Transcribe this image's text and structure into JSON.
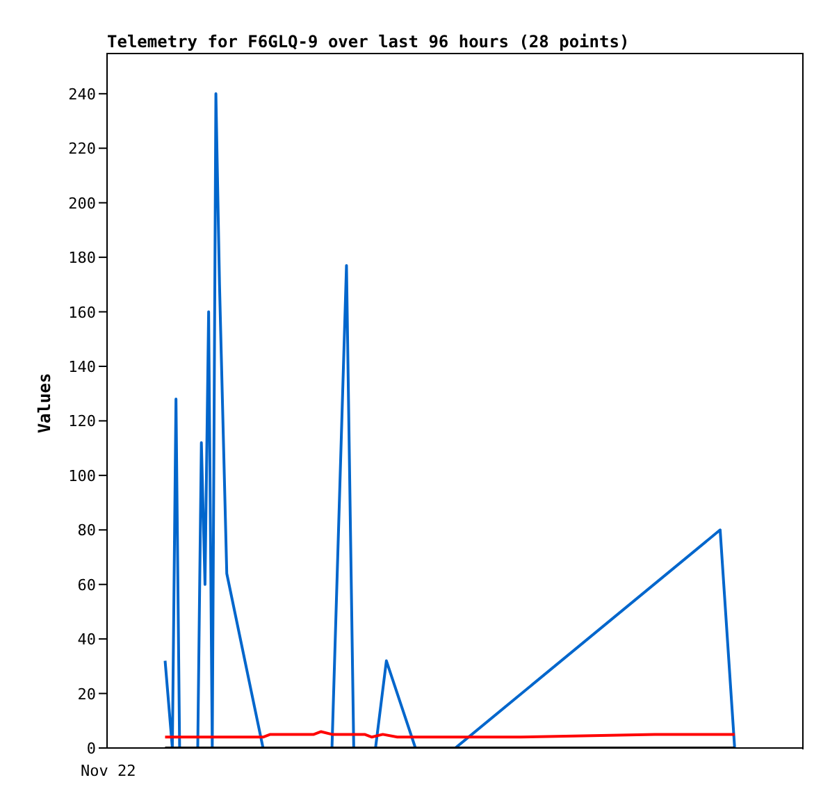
{
  "chart_data": {
    "type": "line",
    "title": "Telemetry for F6GLQ-9 over last 96 hours (28 points)",
    "ylabel": "Values",
    "annotations": [
      "Nov 22"
    ],
    "ylim": [
      0,
      255
    ],
    "yticks": [
      0,
      20,
      40,
      60,
      80,
      100,
      120,
      140,
      160,
      180,
      200,
      220,
      240
    ],
    "marker": "none",
    "line_style": "solid",
    "categories": [
      null,
      null,
      null,
      null,
      null,
      null,
      null,
      null,
      null,
      null,
      null,
      null,
      null,
      null,
      null,
      null,
      null,
      null,
      null,
      null,
      null,
      null,
      null,
      null,
      null,
      null,
      null,
      null,
      null,
      null,
      null,
      null,
      null,
      null,
      null,
      null,
      null,
      null,
      null,
      null,
      null,
      null,
      null,
      null,
      null,
      null,
      null,
      null,
      null,
      null,
      null,
      null,
      null,
      null,
      null,
      null,
      null,
      null,
      null,
      null,
      null,
      null,
      null,
      null,
      null,
      null,
      null,
      null,
      null,
      null,
      null,
      null,
      null,
      null,
      null,
      null,
      null,
      null,
      null,
      null,
      null,
      null,
      null,
      null,
      null,
      null,
      null,
      null,
      null,
      null,
      null,
      null,
      null,
      null,
      null,
      null,
      null,
      null,
      null,
      null,
      null,
      null,
      null,
      null,
      null,
      null,
      null,
      null,
      null,
      null,
      null,
      null,
      null,
      null,
      null,
      null,
      null,
      null,
      null,
      null,
      null,
      null,
      null,
      null,
      null,
      null,
      null,
      null,
      null,
      null,
      null,
      null,
      null,
      null,
      null,
      null,
      null,
      null,
      null,
      null,
      null,
      null,
      null,
      null,
      null,
      null,
      null,
      null,
      null,
      null,
      null,
      null,
      null,
      null,
      null,
      null,
      null,
      null,
      null,
      null,
      null,
      null,
      null,
      null,
      null,
      null,
      null,
      null,
      null,
      null,
      null,
      null,
      null,
      null,
      null,
      null,
      null,
      null,
      null,
      null,
      null,
      null,
      null,
      null,
      null,
      null,
      null,
      null,
      null,
      null,
      null,
      null,
      null
    ],
    "series": [
      {
        "color": "#0066cc",
        "values": [
          null,
          null,
          null,
          null,
          null,
          null,
          null,
          null,
          null,
          null,
          null,
          null,
          null,
          null,
          null,
          null,
          32,
          null,
          0,
          128,
          0,
          null,
          null,
          null,
          null,
          0,
          112,
          60,
          160,
          0,
          240,
          170,
          null,
          64,
          null,
          null,
          null,
          null,
          null,
          null,
          null,
          null,
          null,
          0,
          null,
          null,
          null,
          null,
          null,
          null,
          null,
          null,
          null,
          null,
          null,
          null,
          null,
          null,
          null,
          null,
          null,
          null,
          0,
          null,
          null,
          null,
          177,
          null,
          0,
          null,
          null,
          null,
          null,
          null,
          0,
          null,
          null,
          32,
          null,
          null,
          null,
          null,
          null,
          null,
          null,
          0,
          null,
          null,
          null,
          null,
          null,
          null,
          null,
          null,
          null,
          null,
          0,
          null,
          null,
          null,
          null,
          null,
          null,
          null,
          null,
          null,
          null,
          null,
          null,
          null,
          null,
          null,
          null,
          null,
          null,
          null,
          null,
          null,
          null,
          null,
          null,
          null,
          null,
          null,
          null,
          null,
          null,
          null,
          null,
          null,
          null,
          null,
          null,
          null,
          null,
          null,
          null,
          null,
          null,
          null,
          null,
          null,
          null,
          null,
          null,
          null,
          null,
          null,
          null,
          null,
          null,
          null,
          null,
          null,
          null,
          null,
          null,
          null,
          null,
          null,
          null,
          null,
          null,
          null,
          null,
          null,
          null,
          null,
          null,
          80,
          null,
          null,
          null,
          0,
          null,
          null,
          null,
          null,
          null,
          null,
          null,
          null,
          null,
          null,
          null,
          null,
          null,
          null,
          null,
          null,
          null,
          null,
          null
        ]
      },
      {
        "color": "#ff0000",
        "values": [
          null,
          null,
          null,
          null,
          null,
          null,
          null,
          null,
          null,
          null,
          null,
          null,
          null,
          null,
          null,
          null,
          4,
          null,
          null,
          null,
          null,
          null,
          null,
          null,
          null,
          null,
          null,
          null,
          null,
          null,
          null,
          null,
          null,
          null,
          null,
          null,
          null,
          null,
          null,
          null,
          null,
          null,
          null,
          4,
          null,
          5,
          null,
          null,
          null,
          null,
          null,
          null,
          null,
          null,
          null,
          null,
          null,
          5,
          null,
          6,
          null,
          null,
          5,
          null,
          null,
          null,
          null,
          null,
          null,
          null,
          null,
          5,
          null,
          4,
          null,
          null,
          5,
          null,
          null,
          null,
          4,
          null,
          null,
          null,
          null,
          null,
          null,
          null,
          null,
          null,
          null,
          null,
          null,
          null,
          null,
          null,
          null,
          null,
          null,
          null,
          null,
          null,
          null,
          null,
          null,
          null,
          null,
          null,
          null,
          null,
          null,
          null,
          null,
          null,
          4,
          null,
          null,
          null,
          null,
          null,
          null,
          null,
          null,
          null,
          null,
          null,
          null,
          null,
          null,
          null,
          null,
          null,
          null,
          null,
          null,
          null,
          null,
          null,
          null,
          null,
          null,
          null,
          null,
          null,
          null,
          null,
          null,
          null,
          null,
          null,
          null,
          5,
          null,
          null,
          null,
          null,
          null,
          null,
          null,
          null,
          null,
          null,
          null,
          null,
          null,
          null,
          null,
          null,
          null,
          null,
          null,
          null,
          null,
          5,
          null,
          null,
          null,
          null,
          null,
          null,
          null,
          null,
          null,
          null,
          null,
          null,
          null,
          null,
          null,
          null,
          null,
          null,
          null
        ]
      },
      {
        "color": "#000000",
        "values": [
          null,
          null,
          null,
          null,
          null,
          null,
          null,
          null,
          null,
          null,
          null,
          null,
          null,
          null,
          null,
          null,
          0,
          null,
          null,
          null,
          null,
          null,
          null,
          null,
          null,
          null,
          null,
          null,
          null,
          null,
          null,
          null,
          null,
          null,
          null,
          null,
          null,
          null,
          null,
          null,
          null,
          null,
          null,
          null,
          null,
          null,
          null,
          null,
          null,
          null,
          null,
          null,
          null,
          null,
          null,
          null,
          null,
          null,
          null,
          null,
          null,
          null,
          null,
          null,
          null,
          null,
          null,
          null,
          null,
          null,
          null,
          null,
          null,
          null,
          null,
          null,
          null,
          null,
          null,
          null,
          null,
          null,
          null,
          null,
          null,
          null,
          null,
          null,
          null,
          null,
          null,
          null,
          null,
          null,
          null,
          null,
          null,
          null,
          null,
          null,
          null,
          null,
          null,
          null,
          null,
          null,
          null,
          null,
          null,
          null,
          null,
          null,
          null,
          null,
          null,
          null,
          null,
          null,
          null,
          null,
          null,
          null,
          null,
          null,
          null,
          null,
          null,
          null,
          null,
          null,
          null,
          null,
          null,
          null,
          null,
          null,
          null,
          null,
          null,
          null,
          null,
          null,
          null,
          null,
          null,
          null,
          null,
          null,
          null,
          null,
          null,
          null,
          null,
          null,
          null,
          null,
          null,
          null,
          null,
          null,
          null,
          null,
          null,
          null,
          null,
          null,
          null,
          null,
          null,
          null,
          null,
          null,
          null,
          0,
          null,
          null,
          null,
          null,
          null,
          null,
          null,
          null,
          null,
          null,
          null,
          null,
          null,
          null,
          null,
          null,
          null,
          null,
          null
        ]
      }
    ]
  }
}
